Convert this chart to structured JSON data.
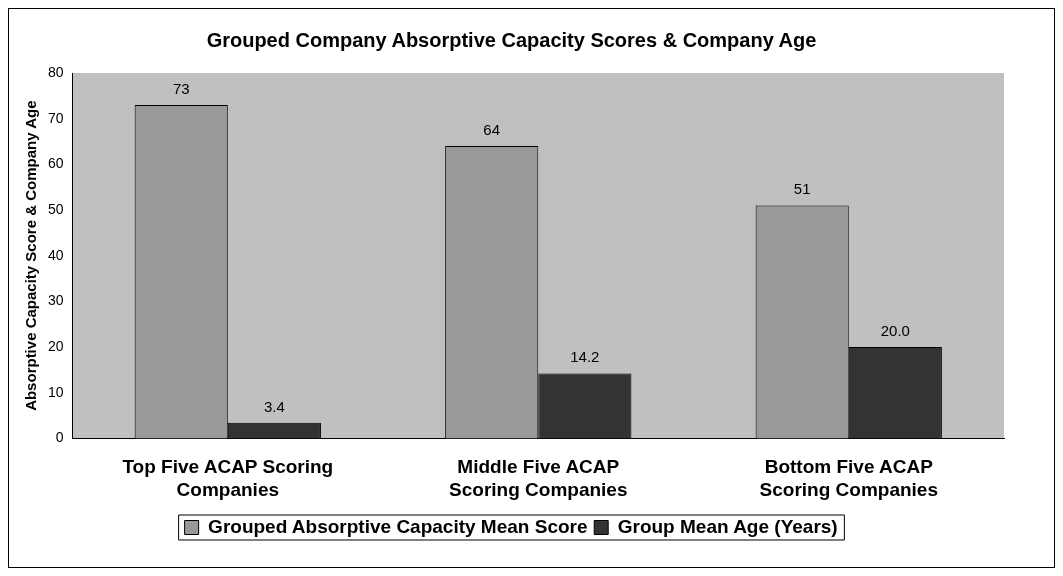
{
  "chart_data": {
    "type": "bar",
    "title": "Grouped Company Absorptive Capacity Scores & Company Age",
    "ylabel": "Absorptive Capacity Score & Company Age",
    "categories": [
      "Top Five ACAP Scoring Companies",
      "Middle Five ACAP Scoring Companies",
      "Bottom Five ACAP Scoring Companies"
    ],
    "series": [
      {
        "name": "Grouped Absorptive Capacity Mean Score",
        "color": "#999999",
        "values": [
          73,
          64,
          51
        ],
        "value_labels": [
          "73",
          "64",
          "51"
        ]
      },
      {
        "name": "Group Mean Age (Years)",
        "color": "#333333",
        "values": [
          3.4,
          14.2,
          20.0
        ],
        "value_labels": [
          "3.4",
          "14.2",
          "20.0"
        ]
      }
    ],
    "ylim": [
      0,
      80
    ],
    "yticks": [
      0,
      10,
      20,
      30,
      40,
      50,
      60,
      70,
      80
    ],
    "grid": false,
    "legend": "bottom"
  }
}
